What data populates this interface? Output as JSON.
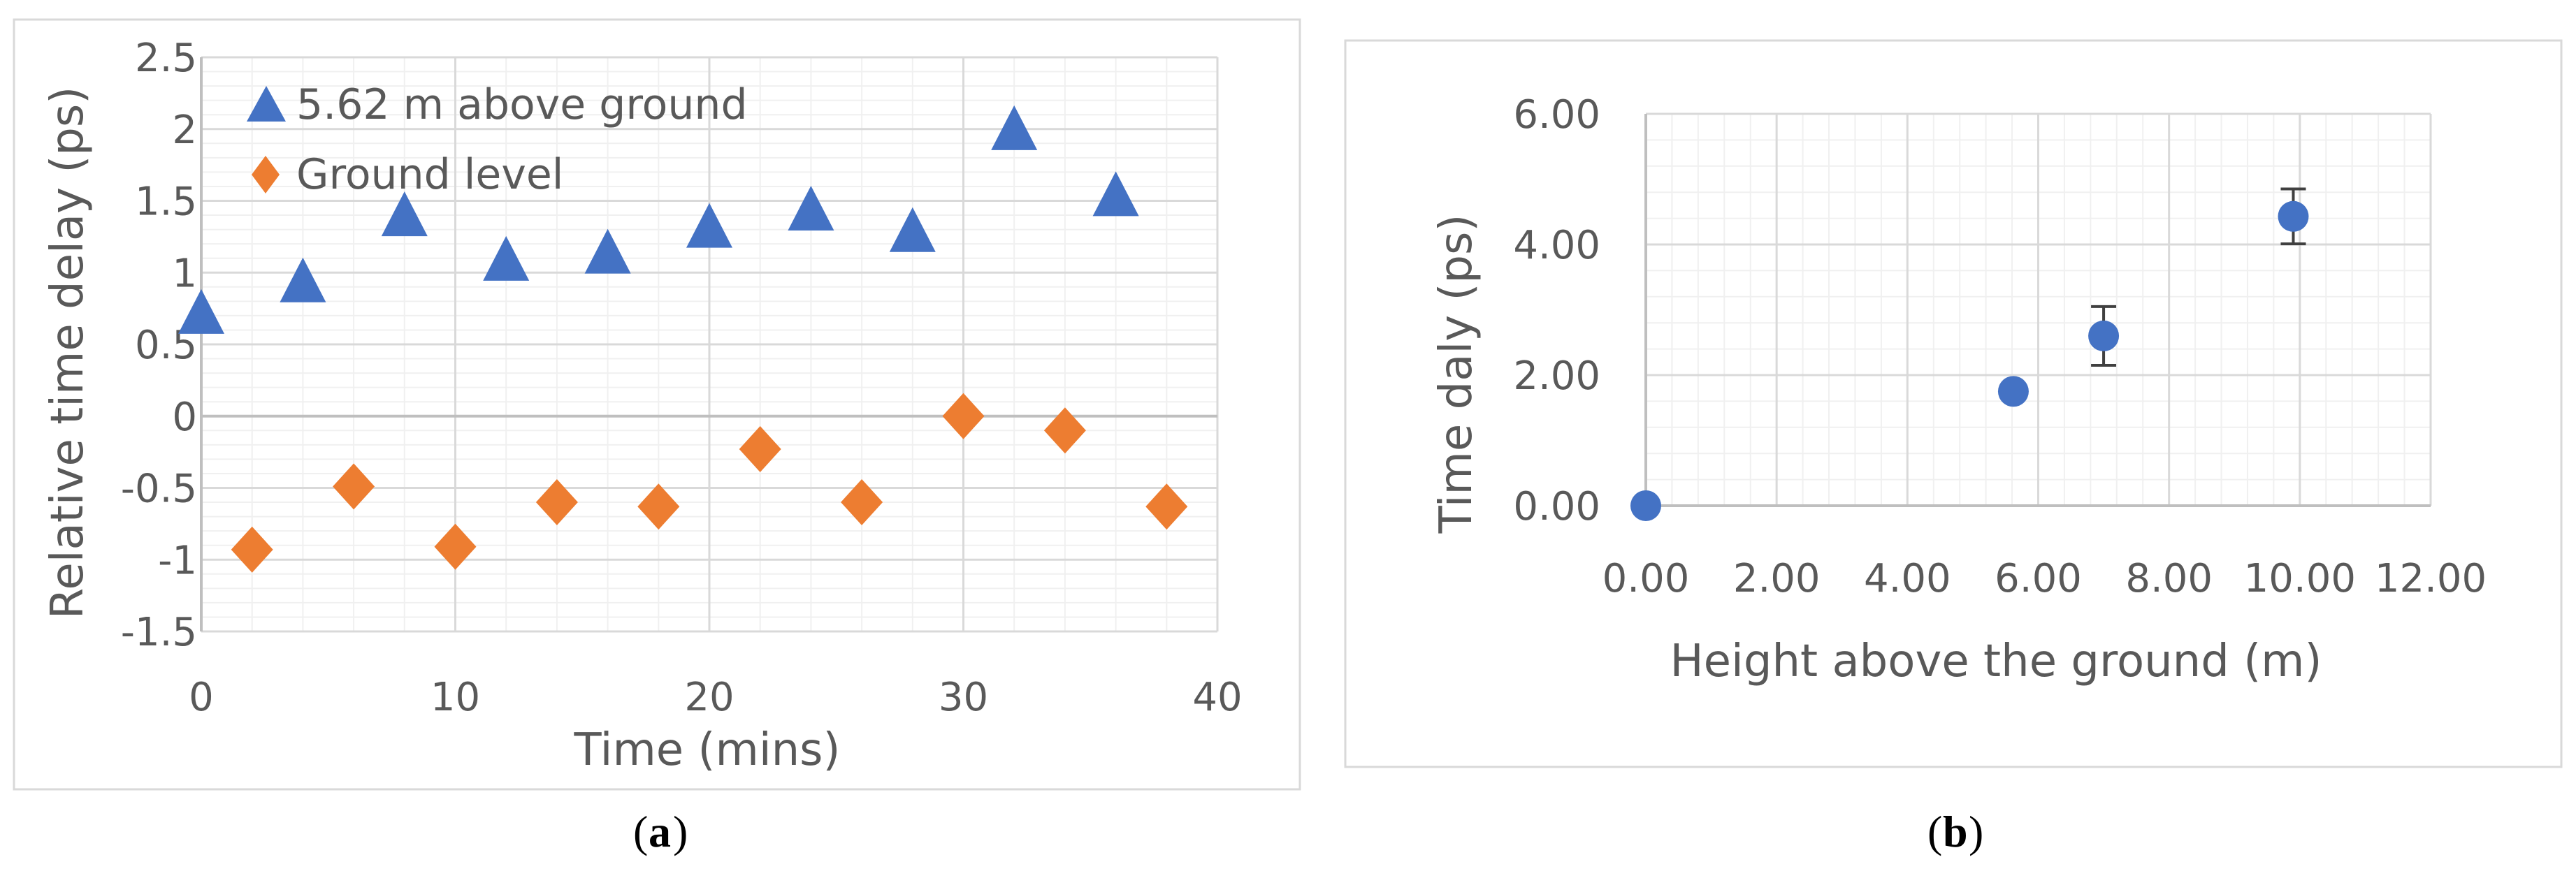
{
  "chart_data": [
    {
      "type": "scatter",
      "panel_label": "a",
      "xlabel": "Time (mins)",
      "ylabel": "Relative time delay (ps)",
      "xlim": [
        0,
        40
      ],
      "ylim": [
        -1.5,
        2.5
      ],
      "x_ticks": [
        "0",
        "10",
        "20",
        "30",
        "40"
      ],
      "y_ticks": [
        "2.5",
        "2",
        "1.5",
        "1",
        "0.5",
        "0",
        "-0.5",
        "-1",
        "-1.5"
      ],
      "grid": true,
      "legend_position": "top-left",
      "series": [
        {
          "name": "5.62 m above ground",
          "marker": "triangle",
          "color": "#4472C4",
          "points": [
            {
              "x": 0,
              "y": 0.7
            },
            {
              "x": 4,
              "y": 0.92
            },
            {
              "x": 8,
              "y": 1.38
            },
            {
              "x": 12,
              "y": 1.07
            },
            {
              "x": 16,
              "y": 1.12
            },
            {
              "x": 20,
              "y": 1.3
            },
            {
              "x": 24,
              "y": 1.42
            },
            {
              "x": 28,
              "y": 1.27
            },
            {
              "x": 32,
              "y": 1.98
            },
            {
              "x": 36,
              "y": 1.52
            }
          ]
        },
        {
          "name": "Ground level",
          "marker": "diamond",
          "color": "#ED7D31",
          "points": [
            {
              "x": 2,
              "y": -0.93
            },
            {
              "x": 6,
              "y": -0.49
            },
            {
              "x": 10,
              "y": -0.91
            },
            {
              "x": 14,
              "y": -0.6
            },
            {
              "x": 18,
              "y": -0.63
            },
            {
              "x": 22,
              "y": -0.23
            },
            {
              "x": 26,
              "y": -0.6
            },
            {
              "x": 30,
              "y": 0.0
            },
            {
              "x": 34,
              "y": -0.1
            },
            {
              "x": 38,
              "y": -0.63
            }
          ]
        }
      ]
    },
    {
      "type": "scatter",
      "panel_label": "b",
      "xlabel": "Height above the ground (m)",
      "ylabel": "Time daly (ps)",
      "xlim": [
        0,
        12
      ],
      "ylim": [
        0,
        6
      ],
      "x_ticks": [
        "0.00",
        "2.00",
        "4.00",
        "6.00",
        "8.00",
        "10.00",
        "12.00"
      ],
      "y_ticks": [
        "6.00",
        "4.00",
        "2.00",
        "0.00"
      ],
      "grid": true,
      "series": [
        {
          "marker": "circle",
          "color": "#4472C4",
          "points": [
            {
              "x": 0.0,
              "y": 0.0,
              "err": 0
            },
            {
              "x": 5.62,
              "y": 1.75,
              "err": 0
            },
            {
              "x": 7.0,
              "y": 2.6,
              "err": 0.45
            },
            {
              "x": 9.9,
              "y": 4.43,
              "err": 0.42
            }
          ]
        }
      ]
    }
  ]
}
